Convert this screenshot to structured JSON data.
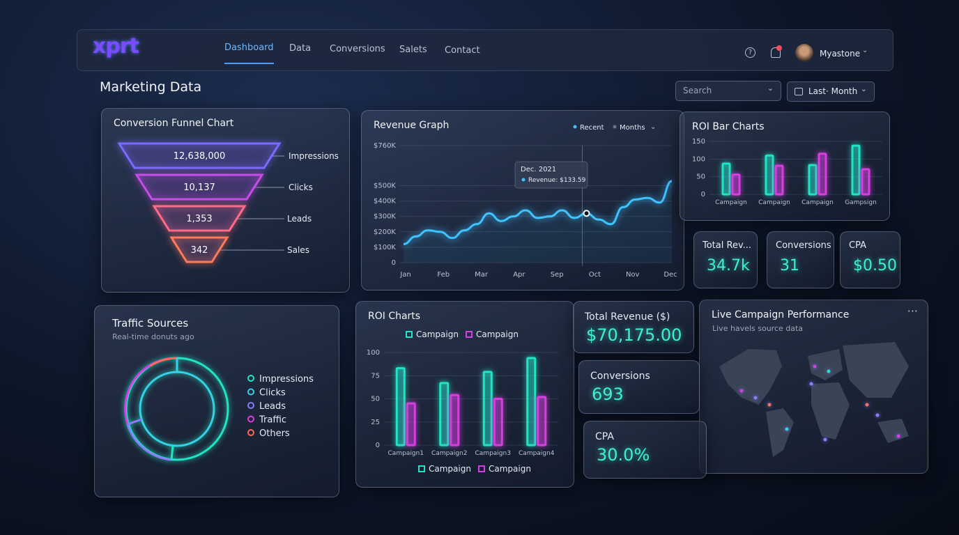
{
  "nav": {
    "logo": "xprt",
    "links": [
      "Dashboard",
      "Data",
      "Conversions",
      "Salets",
      "Contact"
    ],
    "user": "Myastone"
  },
  "header": {
    "title": "Marketing Data",
    "search": "Search",
    "period": "Last· Month"
  },
  "funnel": {
    "title": "Conversion Funnel Chart",
    "stages": [
      {
        "value": "12,638,000",
        "label": "Impressions"
      },
      {
        "value": "10,137",
        "label": "Clicks"
      },
      {
        "value": "1,353",
        "label": "Leads"
      },
      {
        "value": "342",
        "label": "Sales"
      }
    ]
  },
  "revenue": {
    "title": "Revenue Graph",
    "legend": [
      "Recent",
      "Months"
    ],
    "categories": [
      "Jan",
      "Feb",
      "Mar",
      "Apr",
      "Sep",
      "Oct",
      "Nov",
      "Dec"
    ],
    "ylim": [
      0,
      760
    ],
    "yticks": [
      0,
      {
        "value": 100,
        "label": "$100K"
      },
      {
        "value": 200,
        "label": "$200K"
      },
      {
        "value": 300,
        "label": "$300K"
      },
      {
        "value": 400,
        "label": "$400K"
      },
      {
        "value": 500,
        "label": "$500K"
      },
      {
        "value": 760,
        "label": "$760K"
      }
    ],
    "series": [
      {
        "name": "Recent",
        "color": "#3ec3ff",
        "values": [
          120,
          170,
          210,
          200,
          160,
          210,
          250,
          320,
          270,
          300,
          340,
          290,
          300,
          340,
          290,
          320,
          280,
          250,
          360,
          410,
          420,
          390,
          530
        ]
      }
    ],
    "tooltip": {
      "date": "Dec. 2021",
      "text": "Revenue: $133.59"
    }
  },
  "roi_small": {
    "title": "ROI Bar Charts",
    "categories": [
      "Campaign",
      "Campaign",
      "Campaign",
      "Gampsign"
    ],
    "ylim": [
      0,
      150
    ],
    "yticks": [
      0,
      50,
      100,
      150
    ],
    "series": [
      {
        "color": "#22e3c4",
        "values": [
          87,
          110,
          83,
          138
        ]
      },
      {
        "color": "#d63ee0",
        "values": [
          56,
          81,
          115,
          71
        ]
      }
    ]
  },
  "kpi_small": [
    {
      "label": "Total Rev...",
      "value": "34.7k"
    },
    {
      "label": "Conversions",
      "value": "31"
    },
    {
      "label": "CPA",
      "value": "$0.50"
    }
  ],
  "traffic": {
    "title": "Traffic Sources",
    "subtitle": "Real-time donuts ago",
    "legend": [
      {
        "name": "Impressions",
        "color": "#22e3c4"
      },
      {
        "name": "Clicks",
        "color": "#36d0e8"
      },
      {
        "name": "Leads",
        "color": "#8a7bff"
      },
      {
        "name": "Traffic",
        "color": "#d63ee0"
      },
      {
        "name": "Others",
        "color": "#ff6a5a"
      }
    ]
  },
  "roi": {
    "title": "ROI Charts",
    "categories": [
      "Campaign1",
      "Campaign2",
      "Campaign3",
      "Campaign4"
    ],
    "ylim": [
      0,
      100
    ],
    "yticks": [
      0,
      25,
      50,
      75,
      100
    ],
    "series": [
      {
        "name": "Campaign",
        "color": "#22e3c4",
        "values": [
          83,
          67,
          79,
          94
        ]
      },
      {
        "name": "Campaign",
        "color": "#d63ee0",
        "values": [
          45,
          54,
          50,
          52
        ]
      }
    ]
  },
  "kpi_big": [
    {
      "label": "Total Revenue ($)",
      "value": "$70,175.00"
    },
    {
      "label": "Conversions",
      "value": "693"
    },
    {
      "label": "CPA",
      "value": "30.0%"
    }
  ],
  "map": {
    "title": "Live Campaign Performance",
    "subtitle": "Live havels source data"
  }
}
